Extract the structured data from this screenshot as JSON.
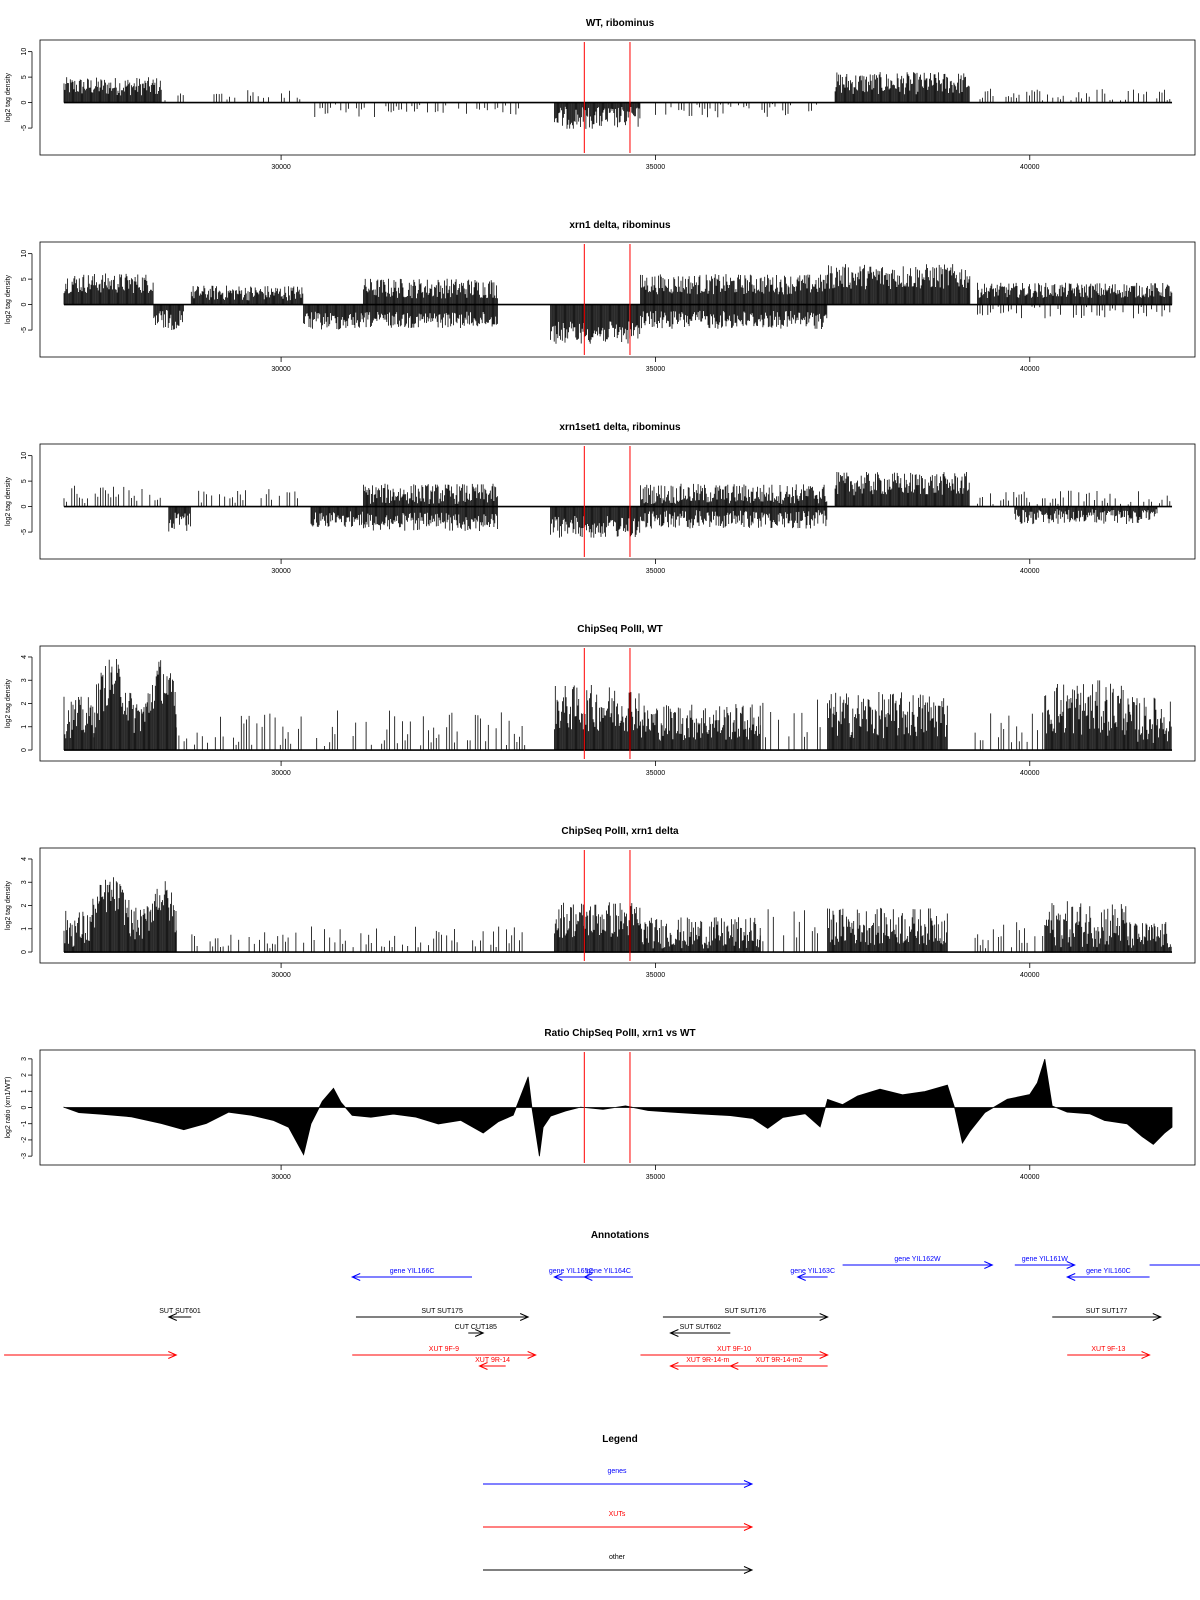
{
  "chart_data": [
    {
      "type": "bar",
      "title": "WT, ribominus",
      "xlabel": "",
      "ylabel": "log2 tag density",
      "xlim": [
        26900,
        42100
      ],
      "ylim": [
        -9.5,
        11.5
      ],
      "x_ticks": [
        "30000",
        "35000",
        "40000"
      ],
      "y_ticks": [
        "-5",
        "0",
        "5",
        "10"
      ],
      "markers": [
        34050,
        34660
      ],
      "segments": [
        {
          "from": 27100,
          "to": 28400,
          "level": 3.2,
          "spread": 1.8,
          "sign": 1
        },
        {
          "from": 28450,
          "to": 28700,
          "level": 0.6,
          "spread": 1.2,
          "sign": 1,
          "sparse": true
        },
        {
          "from": 29000,
          "to": 30300,
          "level": 1.3,
          "spread": 1.2,
          "sign": 1,
          "sparse": true
        },
        {
          "from": 30450,
          "to": 31400,
          "level": -1.6,
          "spread": 1.3,
          "sign": -1,
          "sparse": true
        },
        {
          "from": 31400,
          "to": 33200,
          "level": -1.2,
          "spread": 1.2,
          "sign": -1,
          "sparse": true
        },
        {
          "from": 33650,
          "to": 34800,
          "level": -3.0,
          "spread": 2.2,
          "sign": -1
        },
        {
          "from": 35000,
          "to": 37300,
          "level": -1.5,
          "spread": 1.5,
          "sign": -1,
          "sparse": true
        },
        {
          "from": 37400,
          "to": 39200,
          "level": 3.8,
          "spread": 2.2,
          "sign": 1
        },
        {
          "from": 39300,
          "to": 41900,
          "level": 1.6,
          "spread": 1.2,
          "sign": 1,
          "sparse": true
        }
      ]
    },
    {
      "type": "bar",
      "title": "xrn1 delta, ribominus",
      "xlabel": "",
      "ylabel": "log2 tag density",
      "xlim": [
        26900,
        42100
      ],
      "ylim": [
        -9.5,
        11.5
      ],
      "x_ticks": [
        "30000",
        "35000",
        "40000"
      ],
      "y_ticks": [
        "-5",
        "0",
        "5",
        "10"
      ],
      "markers": [
        34050,
        34660
      ],
      "segments": [
        {
          "from": 27100,
          "to": 28300,
          "level": 4.2,
          "spread": 2.0,
          "sign": 1
        },
        {
          "from": 28300,
          "to": 28700,
          "level": -3.0,
          "spread": 2.0,
          "sign": -1
        },
        {
          "from": 28800,
          "to": 30300,
          "level": 2.3,
          "spread": 1.5,
          "sign": 1
        },
        {
          "from": 30300,
          "to": 31100,
          "level": -3.2,
          "spread": 1.8,
          "sign": -1
        },
        {
          "from": 31100,
          "to": 32900,
          "level": 3.2,
          "spread": 2.0,
          "sign": 1
        },
        {
          "from": 31100,
          "to": 32900,
          "level": -3.0,
          "spread": 1.6,
          "sign": -1,
          "overlay": true
        },
        {
          "from": 33600,
          "to": 34800,
          "level": -5.5,
          "spread": 2.2,
          "sign": -1
        },
        {
          "from": 34800,
          "to": 37300,
          "level": 4.0,
          "spread": 2.0,
          "sign": 1
        },
        {
          "from": 34800,
          "to": 37300,
          "level": -3.0,
          "spread": 1.8,
          "sign": -1,
          "overlay": true
        },
        {
          "from": 37300,
          "to": 39200,
          "level": 5.5,
          "spread": 2.5,
          "sign": 1
        },
        {
          "from": 39300,
          "to": 41900,
          "level": 2.8,
          "spread": 1.5,
          "sign": 1
        },
        {
          "from": 39300,
          "to": 41900,
          "level": -1.5,
          "spread": 1.2,
          "sign": -1,
          "overlay": true,
          "sparse": true
        }
      ]
    },
    {
      "type": "bar",
      "title": "xrn1set1 delta, ribominus",
      "xlabel": "",
      "ylabel": "log2 tag density",
      "xlim": [
        26900,
        42100
      ],
      "ylim": [
        -9.5,
        11.5
      ],
      "x_ticks": [
        "30000",
        "35000",
        "40000"
      ],
      "y_ticks": [
        "-5",
        "0",
        "5",
        "10"
      ],
      "markers": [
        34050,
        34660
      ],
      "segments": [
        {
          "from": 27100,
          "to": 28400,
          "level": 2.5,
          "spread": 1.8,
          "sign": 1,
          "sparse": true
        },
        {
          "from": 28500,
          "to": 28800,
          "level": -3.0,
          "spread": 2.0,
          "sign": -1
        },
        {
          "from": 28900,
          "to": 30300,
          "level": 2.0,
          "spread": 1.5,
          "sign": 1,
          "sparse": true
        },
        {
          "from": 30400,
          "to": 31100,
          "level": -2.5,
          "spread": 1.6,
          "sign": -1
        },
        {
          "from": 31100,
          "to": 32900,
          "level": 2.5,
          "spread": 2.0,
          "sign": 1
        },
        {
          "from": 31100,
          "to": 32900,
          "level": -3.0,
          "spread": 1.8,
          "sign": -1,
          "overlay": true
        },
        {
          "from": 33600,
          "to": 34800,
          "level": -4.0,
          "spread": 2.2,
          "sign": -1
        },
        {
          "from": 34800,
          "to": 37300,
          "level": 2.5,
          "spread": 2.0,
          "sign": 1
        },
        {
          "from": 34800,
          "to": 37300,
          "level": -2.5,
          "spread": 1.8,
          "sign": -1,
          "overlay": true
        },
        {
          "from": 37400,
          "to": 39200,
          "level": 4.5,
          "spread": 2.3,
          "sign": 1
        },
        {
          "from": 39300,
          "to": 41900,
          "level": 1.8,
          "spread": 1.4,
          "sign": 1,
          "sparse": true
        },
        {
          "from": 39800,
          "to": 41700,
          "level": -2.0,
          "spread": 1.5,
          "sign": -1,
          "overlay": true
        }
      ]
    },
    {
      "type": "bar",
      "title": "ChipSeq PolII, WT",
      "xlabel": "",
      "ylabel": "log2 tag density",
      "xlim": [
        26900,
        42100
      ],
      "ylim": [
        -0.3,
        4.3
      ],
      "x_ticks": [
        "30000",
        "35000",
        "40000"
      ],
      "y_ticks": [
        "0",
        "1",
        "2",
        "3",
        "4"
      ],
      "markers": [
        34050,
        34660
      ],
      "segments": [
        {
          "from": 27100,
          "to": 27500,
          "level": 1.4,
          "spread": 0.9,
          "sign": 1
        },
        {
          "from": 27500,
          "to": 28000,
          "level": 3.0,
          "spread": 1.0,
          "sign": 1,
          "hump": true
        },
        {
          "from": 28000,
          "to": 28200,
          "level": 1.5,
          "spread": 0.8,
          "sign": 1
        },
        {
          "from": 28200,
          "to": 28600,
          "level": 3.0,
          "spread": 1.0,
          "sign": 1,
          "hump": true
        },
        {
          "from": 28600,
          "to": 33300,
          "level": 0.9,
          "spread": 0.8,
          "sign": 1,
          "sparse": true
        },
        {
          "from": 33650,
          "to": 34800,
          "level": 1.8,
          "spread": 1.0,
          "sign": 1
        },
        {
          "from": 34800,
          "to": 36400,
          "level": 1.2,
          "spread": 0.8,
          "sign": 1
        },
        {
          "from": 36400,
          "to": 37200,
          "level": 1.4,
          "spread": 1.0,
          "sign": 1,
          "sparse": true
        },
        {
          "from": 37300,
          "to": 38900,
          "level": 1.5,
          "spread": 1.0,
          "sign": 1
        },
        {
          "from": 39200,
          "to": 40200,
          "level": 1.0,
          "spread": 0.7,
          "sign": 1,
          "sparse": true
        },
        {
          "from": 40200,
          "to": 41300,
          "level": 1.8,
          "spread": 1.2,
          "sign": 1
        },
        {
          "from": 41300,
          "to": 41900,
          "level": 1.3,
          "spread": 1.0,
          "sign": 1
        }
      ]
    },
    {
      "type": "bar",
      "title": "ChipSeq PolII, xrn1 delta",
      "xlabel": "",
      "ylabel": "log2 tag density",
      "xlim": [
        26900,
        42100
      ],
      "ylim": [
        -0.3,
        4.3
      ],
      "x_ticks": [
        "30000",
        "35000",
        "40000"
      ],
      "y_ticks": [
        "0",
        "1",
        "2",
        "3",
        "4"
      ],
      "markers": [
        34050,
        34660
      ],
      "segments": [
        {
          "from": 27100,
          "to": 27450,
          "level": 1.0,
          "spread": 0.8,
          "sign": 1
        },
        {
          "from": 27450,
          "to": 28000,
          "level": 2.5,
          "spread": 0.8,
          "sign": 1,
          "hump": true
        },
        {
          "from": 28000,
          "to": 28200,
          "level": 1.2,
          "spread": 0.7,
          "sign": 1
        },
        {
          "from": 28200,
          "to": 28600,
          "level": 2.4,
          "spread": 0.8,
          "sign": 1,
          "hump": true
        },
        {
          "from": 28600,
          "to": 33300,
          "level": 0.5,
          "spread": 0.6,
          "sign": 1,
          "sparse": true
        },
        {
          "from": 33650,
          "to": 34800,
          "level": 1.4,
          "spread": 0.8,
          "sign": 1
        },
        {
          "from": 34800,
          "to": 36400,
          "level": 0.8,
          "spread": 0.7,
          "sign": 1
        },
        {
          "from": 36400,
          "to": 37200,
          "level": 1.1,
          "spread": 0.8,
          "sign": 1,
          "sparse": true
        },
        {
          "from": 37300,
          "to": 38900,
          "level": 1.1,
          "spread": 0.8,
          "sign": 1
        },
        {
          "from": 39200,
          "to": 40200,
          "level": 0.7,
          "spread": 0.6,
          "sign": 1,
          "sparse": true
        },
        {
          "from": 40200,
          "to": 41300,
          "level": 1.2,
          "spread": 1.0,
          "sign": 1
        },
        {
          "from": 41300,
          "to": 41900,
          "level": 0.7,
          "spread": 0.6,
          "sign": 1
        }
      ]
    },
    {
      "type": "area",
      "title": "Ratio ChipSeq PolII, xrn1 vs WT",
      "xlabel": "",
      "ylabel": "log2 ratio (xrn1/WT)",
      "xlim": [
        26900,
        42100
      ],
      "ylim": [
        -3.3,
        3.3
      ],
      "x_ticks": [
        "30000",
        "35000",
        "40000"
      ],
      "y_ticks": [
        "-3",
        "-2",
        "-1",
        "0",
        "1",
        "2",
        "3"
      ],
      "markers": [
        34050,
        34660
      ],
      "x": [
        27100,
        27300,
        27600,
        28000,
        28400,
        28700,
        29000,
        29300,
        29600,
        29900,
        30100,
        30300,
        30400,
        30550,
        30700,
        30800,
        30950,
        31200,
        31500,
        31800,
        32100,
        32400,
        32700,
        32900,
        33100,
        33300,
        33350,
        33450,
        33500,
        33600,
        33800,
        34000,
        34300,
        34600,
        34900,
        35200,
        35600,
        36000,
        36300,
        36500,
        36700,
        37000,
        37200,
        37300,
        37500,
        37700,
        38000,
        38300,
        38600,
        38900,
        39000,
        39100,
        39200,
        39400,
        39700,
        40000,
        40100,
        40200,
        40300,
        40500,
        40800,
        41000,
        41300,
        41500,
        41650,
        41800,
        41900
      ],
      "values": [
        0.0,
        -0.3,
        -0.4,
        -0.6,
        -1.0,
        -1.4,
        -1.0,
        -0.3,
        -0.5,
        -0.8,
        -1.2,
        -2.9,
        -1.0,
        0.4,
        1.2,
        0.3,
        -0.5,
        -0.6,
        -0.4,
        -0.6,
        -1.0,
        -0.8,
        -1.6,
        -0.9,
        -0.5,
        1.9,
        0.0,
        -3.0,
        -1.2,
        -0.5,
        -0.2,
        0.0,
        -0.1,
        0.1,
        -0.2,
        -0.3,
        -0.4,
        -0.5,
        -0.7,
        -1.3,
        -0.6,
        -0.4,
        -1.2,
        0.5,
        0.2,
        0.7,
        1.1,
        0.8,
        1.0,
        1.4,
        -0.1,
        -2.2,
        -1.5,
        -0.3,
        0.5,
        0.8,
        1.5,
        3.0,
        0.1,
        -0.3,
        -0.4,
        -0.8,
        -1.0,
        -1.8,
        -2.3,
        -1.6,
        -1.2
      ]
    }
  ],
  "annotations": {
    "title": "Annotations",
    "items": [
      {
        "label": "gene YIL166C",
        "color": "#0000ff",
        "x1": 32550,
        "x2": 30950,
        "row": 0
      },
      {
        "label": "gene YIL165C",
        "color": "#0000ff",
        "x1": 34100,
        "x2": 33650,
        "row": 0
      },
      {
        "label": "gene YIL164C",
        "color": "#0000ff",
        "x1": 34700,
        "x2": 34050,
        "row": 0
      },
      {
        "label": "gene YIL163C",
        "color": "#0000ff",
        "x1": 37300,
        "x2": 36900,
        "row": 0
      },
      {
        "label": "gene YIL162W",
        "color": "#0000ff",
        "x1": 37500,
        "x2": 39500,
        "row": -1
      },
      {
        "label": "gene YIL161W",
        "color": "#0000ff",
        "x1": 39800,
        "x2": 40600,
        "row": -1
      },
      {
        "label": "gene YIL160C",
        "color": "#0000ff",
        "x1": 41600,
        "x2": 40500,
        "row": 0
      },
      {
        "label": "",
        "color": "#0000ff",
        "x1": 41600,
        "x2": 42300,
        "row": -1,
        "noarrow": true
      },
      {
        "label": "SUT SUT601",
        "color": "#000000",
        "x1": 28800,
        "x2": 28500,
        "row": 1
      },
      {
        "label": "SUT SUT175",
        "color": "#000000",
        "x1": 31000,
        "x2": 33300,
        "row": 1
      },
      {
        "label": "CUT CUT185",
        "color": "#000000",
        "x1": 32500,
        "x2": 32700,
        "row": 2
      },
      {
        "label": "SUT SUT176",
        "color": "#000000",
        "x1": 35100,
        "x2": 37300,
        "row": 1
      },
      {
        "label": "SUT SUT602",
        "color": "#000000",
        "x1": 36000,
        "x2": 35200,
        "row": 2
      },
      {
        "label": "SUT SUT177",
        "color": "#000000",
        "x1": 40300,
        "x2": 41750,
        "row": 1
      },
      {
        "label": "",
        "color": "#ff0000",
        "x1": 26300,
        "x2": 28600,
        "row": 3
      },
      {
        "label": "XUT 9F-9",
        "color": "#ff0000",
        "x1": 30950,
        "x2": 33400,
        "row": 3
      },
      {
        "label": "XUT 9R-14",
        "color": "#ff0000",
        "x1": 33000,
        "x2": 32650,
        "row": 4
      },
      {
        "label": "XUT 9F-10",
        "color": "#ff0000",
        "x1": 34800,
        "x2": 37300,
        "row": 3
      },
      {
        "label": "XUT 9R-14-m",
        "color": "#ff0000",
        "x1": 36200,
        "x2": 35200,
        "row": 4
      },
      {
        "label": "XUT 9R-14-m2",
        "color": "#ff0000",
        "x1": 37300,
        "x2": 36000,
        "row": 4
      },
      {
        "label": "XUT 9F-13",
        "color": "#ff0000",
        "x1": 40500,
        "x2": 41600,
        "row": 3
      }
    ]
  },
  "legend": {
    "title": "Legend",
    "entries": [
      {
        "label": "genes",
        "color": "#0000ff"
      },
      {
        "label": "XUTs",
        "color": "#ff0000"
      },
      {
        "label": "other",
        "color": "#000000"
      }
    ]
  }
}
